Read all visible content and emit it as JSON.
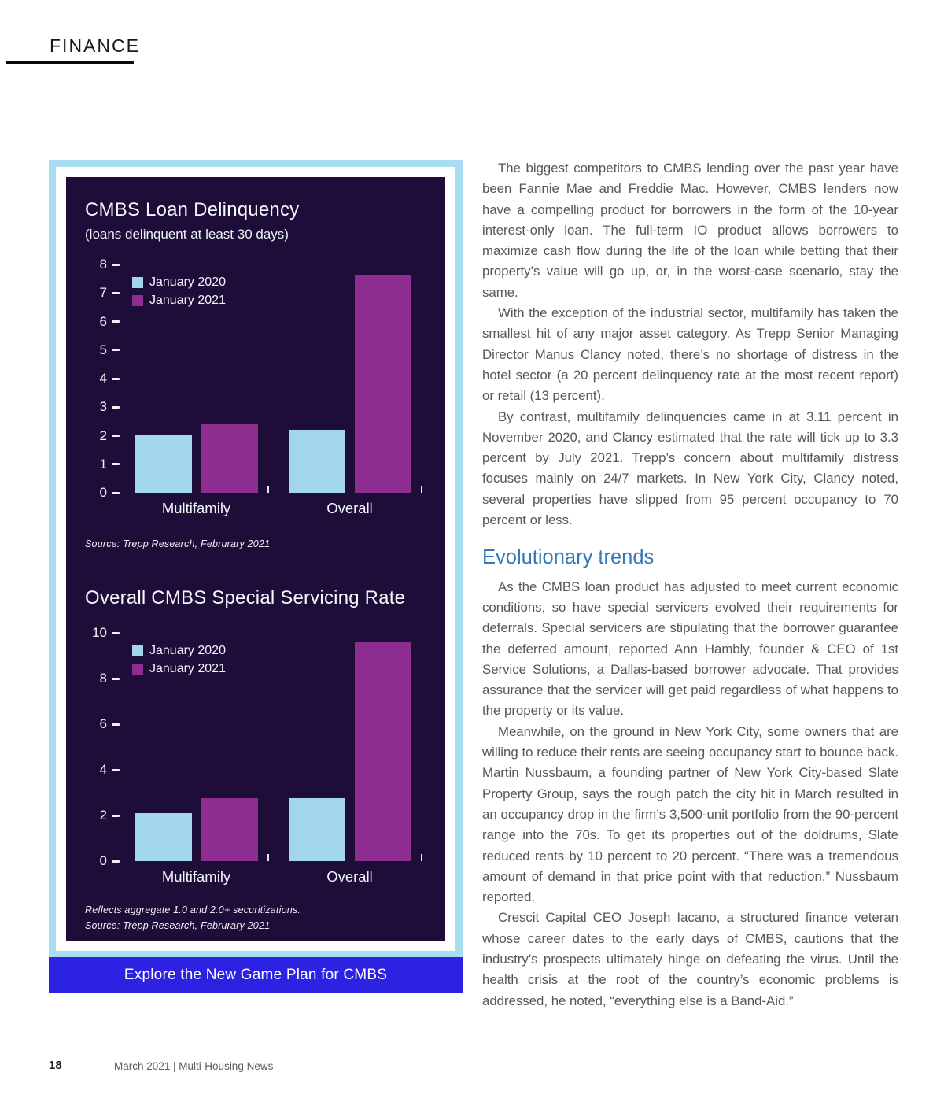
{
  "page": {
    "section_label": "FINANCE",
    "page_number": "18",
    "footer_text": "March 2021  |  Multi-Housing News"
  },
  "panel": {
    "cta_label": "Explore the New Game Plan for CMBS"
  },
  "colors": {
    "panel_frame": "#a9def2",
    "panel_background": "#1e0d38",
    "series_jan_2020": "#a2d7eb",
    "series_jan_2021": "#8e2d90",
    "cta_background": "#2e22e2",
    "heading_accent": "#3579b8"
  },
  "chart_data": [
    {
      "type": "bar",
      "title": "CMBS Loan Delinquency",
      "subtitle": "(loans delinquent at least 30 days)",
      "categories": [
        "Multifamily",
        "Overall"
      ],
      "series": [
        {
          "name": "January 2020",
          "color": "#a2d7eb",
          "values": [
            2.0,
            2.2
          ]
        },
        {
          "name": "January 2021",
          "color": "#8e2d90",
          "values": [
            2.4,
            7.6
          ]
        }
      ],
      "ylim": [
        0,
        8
      ],
      "yticks": [
        0,
        1,
        2,
        3,
        4,
        5,
        6,
        7,
        8
      ],
      "grid": false,
      "legend_position": "top-left",
      "source": "Source: Trepp Research, Februrary 2021"
    },
    {
      "type": "bar",
      "title": "Overall CMBS Special Servicing Rate",
      "subtitle": "",
      "categories": [
        "Multifamily",
        "Overall"
      ],
      "series": [
        {
          "name": "January 2020",
          "color": "#a2d7eb",
          "values": [
            2.1,
            2.75
          ]
        },
        {
          "name": "January 2021",
          "color": "#8e2d90",
          "values": [
            2.75,
            9.6
          ]
        }
      ],
      "ylim": [
        0,
        10
      ],
      "yticks": [
        0,
        2,
        4,
        6,
        8,
        10
      ],
      "grid": false,
      "legend_position": "top-left",
      "note": "Reflects aggregate 1.0 and 2.0+ securitizations.",
      "source": "Source: Trepp Research, Februrary 2021"
    }
  ],
  "article": {
    "heading": "Evolutionary trends",
    "paragraphs": [
      "The biggest competitors to CMBS lending over the past year have been Fannie Mae and Freddie Mac. However, CMBS lenders now have a compelling product for borrowers in the form of the 10-year interest-only loan. The full-term IO product allows borrowers to maximize cash flow during the life of the loan while betting that their property’s value will go up, or, in the worst-case scenario, stay the same.",
      "With the exception of the industrial sector, multifamily has taken the smallest hit of any major asset category. As Trepp Senior Managing Director Manus Clancy noted, there’s no shortage of distress in the hotel sector (a 20 percent delinquency rate at the most recent report) or retail (13 percent).",
      "By contrast, multifamily delinquencies came in at 3.11 percent in November 2020, and Clancy estimated that the rate will tick up to 3.3 percent by July 2021. Trepp’s concern about multifamily distress focuses mainly on 24/7 markets. In New York City, Clancy noted, several properties have slipped from 95 percent occupancy to 70 percent or less.",
      "As the CMBS loan product has adjusted to meet current economic conditions, so have special servicers evolved their requirements for deferrals. Special servicers are stipulating that the borrower guarantee the deferred amount, reported Ann Hambly, founder & CEO of 1st Service Solutions, a Dallas-based borrower advocate. That provides assurance that the servicer will get paid regardless of what happens to the property or its value.",
      "Meanwhile, on the ground in New York City, some owners that are willing to reduce their rents are seeing occupancy start to bounce back. Martin Nussbaum, a founding partner of New York City-based Slate Property Group, says the rough patch the city hit in March resulted in an occupancy drop in the firm’s 3,500-unit portfolio from the 90-percent range into the 70s. To get its properties out of the doldrums, Slate reduced rents by 10 percent to 20 percent. “There was a tremendous amount of demand in that price point with that reduction,” Nussbaum reported.",
      "Crescit Capital CEO Joseph Iacano, a structured finance veteran whose career dates to the early days of CMBS, cautions that the industry’s prospects ultimately hinge on defeating the virus. Until the health crisis at the root of the country’s economic problems is addressed, he noted, “everything else is a Band-Aid.”"
    ]
  }
}
